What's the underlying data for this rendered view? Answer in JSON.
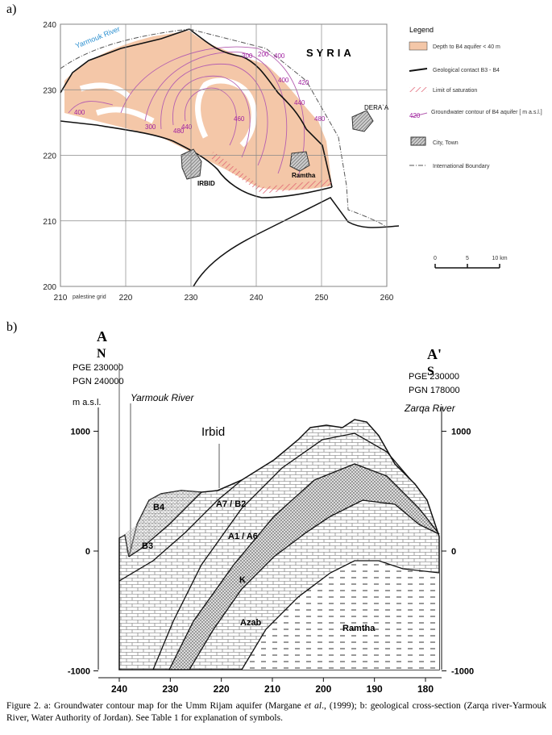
{
  "panel_a": {
    "label": "a)",
    "xticks": [
      210,
      220,
      230,
      240,
      250,
      260
    ],
    "yticks": [
      200,
      210,
      220,
      230,
      240
    ],
    "grid_note": "palestine grid",
    "places": {
      "river": "Yarmouk River",
      "country": "SYRIA",
      "dera": "DERA`A",
      "irbid": "IRBID",
      "ramtha": "Ramtha"
    },
    "contours": [
      "200",
      "300",
      "400",
      "420",
      "440",
      "460",
      "480",
      "400",
      "440",
      "480",
      "300",
      "400"
    ],
    "legend": {
      "title": "Legend",
      "items": [
        "Depth to B4 aquifer < 40 m",
        "Geological contact B3 - B4",
        "Limit of saturation",
        "Groundwater contour of B4 aquifer [ m a.s.l.]",
        "City, Town",
        "International Boundary"
      ],
      "contour_sample": "420"
    },
    "scale": [
      "0",
      "5",
      "10 km"
    ]
  },
  "panel_b": {
    "label": "b)",
    "left": {
      "section": "A",
      "dir": "N",
      "pge": "PGE 230000",
      "pgn": "PGN 240000",
      "unit": "m a.s.l.",
      "river": "Yarmouk River"
    },
    "right": {
      "section": "A'",
      "dir": "S",
      "pge": "PGE 230000",
      "pgn": "PGN 178000",
      "river": "Zarqa River"
    },
    "city": "Irbid",
    "yticks": [
      1000,
      0,
      -1000
    ],
    "xticks": [
      240,
      230,
      220,
      210,
      200,
      190,
      180
    ],
    "units": [
      "B4",
      "B3",
      "A7 / B2",
      "A1 / A6",
      "K",
      "Azab",
      "Ramtha"
    ]
  },
  "caption": [
    "Figure 2. a: Groundwater contour map for the Umm Rijam aquifer (Margane ",
    "et al",
    ".,  (1999); b: geological cross-section (Zarqa river-Yarmouk River, Water Authority of Jordan). See Table 1 for explanation of symbols."
  ]
}
